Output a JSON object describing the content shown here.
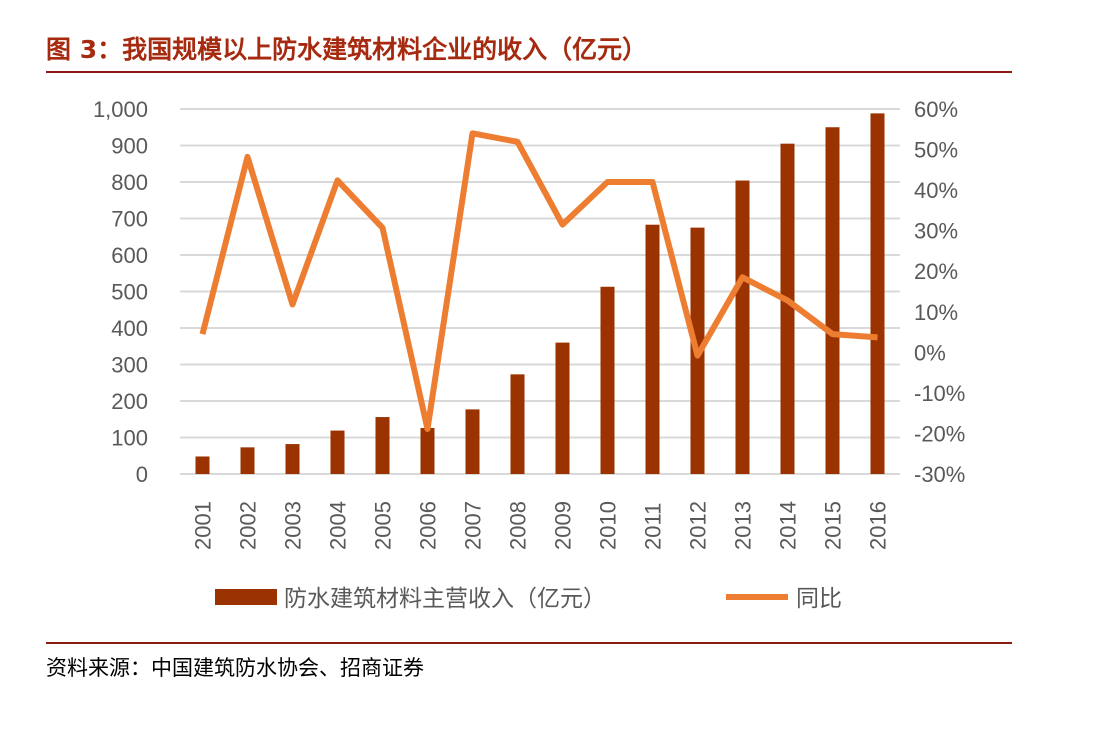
{
  "title": "图 3：我国规模以上防水建筑材料企业的收入（亿元）",
  "source": "资料来源：中国建筑防水协会、招商证券",
  "chart_data": {
    "type": "bar+line",
    "categories": [
      "2001",
      "2002",
      "2003",
      "2004",
      "2005",
      "2006",
      "2007",
      "2008",
      "2009",
      "2010",
      "2011",
      "2012",
      "2013",
      "2014",
      "2015",
      "2016"
    ],
    "series": [
      {
        "name": "防水建筑材料主营收入（亿元）",
        "type": "bar",
        "axis": "left",
        "color": "#9a3300",
        "values": [
          48,
          73,
          82,
          119,
          156,
          126,
          177,
          273,
          360,
          513,
          683,
          675,
          804,
          905,
          950,
          988
        ]
      },
      {
        "name": "同比",
        "type": "line",
        "axis": "right",
        "color": "#ed7d31",
        "values": [
          4.5,
          48.2,
          11.8,
          42.4,
          30.7,
          -18.9,
          54,
          51.9,
          31.5,
          42,
          42,
          -0.8,
          18.5,
          12.8,
          4.5,
          3.7
        ]
      }
    ],
    "left_axis": {
      "ylim": [
        0,
        1000
      ],
      "ticks": [
        "0",
        "100",
        "200",
        "300",
        "400",
        "500",
        "600",
        "700",
        "800",
        "900",
        "1,000"
      ]
    },
    "right_axis": {
      "ylim": [
        -30,
        60
      ],
      "ticks": [
        "-30%",
        "-20%",
        "-10%",
        "0%",
        "10%",
        "20%",
        "30%",
        "40%",
        "50%",
        "60%"
      ]
    },
    "grid": true,
    "legend": "bottom"
  }
}
